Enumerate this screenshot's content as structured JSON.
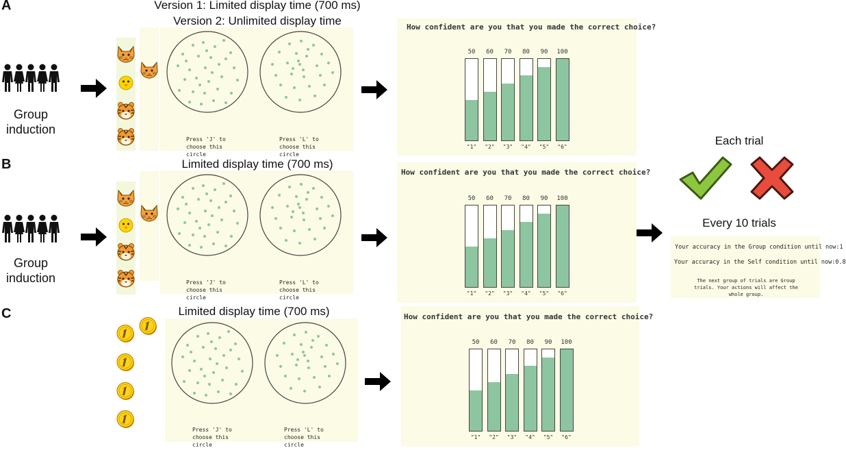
{
  "rows": {
    "a": {
      "label": "A",
      "title1": "Version 1: Limited display time (700 ms)",
      "title2": "Version 2: Unlimited display time",
      "group_label": "Group induction",
      "press_left": "Press 'J' to choose this circle",
      "press_right": "Press 'L' to choose this circle",
      "question": "How confident are you that you made the correct choice?"
    },
    "b": {
      "label": "B",
      "title": "Limited display time (700 ms)",
      "group_label": "Group induction",
      "press_left": "Press 'J' to choose this circle",
      "press_right": "Press 'L' to choose this circle",
      "question": "How confident are you that you made the correct choice?"
    },
    "c": {
      "label": "C",
      "title": "Limited display time (700 ms)",
      "press_left": "Press 'J' to choose this circle",
      "press_right": "Press 'L' to choose this circle",
      "question": "How confident are you that you made the correct choice?"
    }
  },
  "confidence_scale": {
    "percentages": [
      "50",
      "60",
      "70",
      "80",
      "90",
      "100"
    ],
    "keys": [
      "\"1\"",
      "\"2\"",
      "\"3\"",
      "\"4\"",
      "\"5\"",
      "\"6\""
    ],
    "fill_levels": [
      50,
      60,
      70,
      80,
      90,
      100
    ]
  },
  "feedback": {
    "each_trial": "Each trial",
    "every_10": "Every 10 trials",
    "group_accuracy": "Your accuracy in the Group condition until now:1",
    "self_accuracy": "Your accuracy in the Self condition until now:0.8",
    "next_group": "The next group of trials are Group trials. Your actions will affect the whole group."
  },
  "icons": {
    "people": "people-group-icon",
    "arrow": "right-arrow-icon",
    "cat": "cat-face-icon",
    "chick": "chick-icon",
    "tiger": "tiger-face-icon",
    "coin": "coin-icon",
    "check": "check-icon",
    "cross": "cross-icon"
  },
  "colors": {
    "dot": "#8dc5a1",
    "fill": "#8dc5a1",
    "check": "#8cc63f",
    "cross": "#e74c3c"
  }
}
